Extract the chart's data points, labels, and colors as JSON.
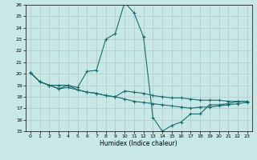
{
  "xlabel": "Humidex (Indice chaleur)",
  "ylabel": "",
  "background_color": "#c8e8e8",
  "grid_color": "#b0c8c8",
  "line_color": "#1a6b6b",
  "xlim": [
    -0.5,
    23.5
  ],
  "ylim": [
    15,
    26
  ],
  "xticks": [
    0,
    1,
    2,
    3,
    4,
    5,
    6,
    7,
    8,
    9,
    10,
    11,
    12,
    13,
    14,
    15,
    16,
    17,
    18,
    19,
    20,
    21,
    22,
    23
  ],
  "yticks": [
    15,
    16,
    17,
    18,
    19,
    20,
    21,
    22,
    23,
    24,
    25,
    26
  ],
  "line1_x": [
    0,
    1,
    2,
    3,
    4,
    5,
    6,
    7,
    8,
    9,
    10,
    11,
    12,
    13,
    14,
    15,
    16,
    17,
    18,
    19,
    20,
    21,
    22,
    23
  ],
  "line1_y": [
    20.1,
    19.3,
    19.0,
    18.7,
    18.8,
    18.6,
    18.4,
    18.3,
    18.1,
    18.0,
    17.8,
    17.6,
    17.5,
    17.4,
    17.3,
    17.2,
    17.1,
    17.0,
    17.1,
    17.1,
    17.2,
    17.3,
    17.4,
    17.5
  ],
  "line2_x": [
    0,
    1,
    2,
    3,
    4,
    5,
    6,
    7,
    8,
    9,
    10,
    11,
    12,
    13,
    14,
    15,
    16,
    17,
    18,
    19,
    20,
    21,
    22,
    23
  ],
  "line2_y": [
    20.1,
    19.3,
    19.0,
    19.0,
    19.0,
    18.8,
    20.2,
    20.3,
    23.0,
    23.5,
    26.2,
    25.3,
    23.2,
    16.2,
    15.0,
    15.5,
    15.8,
    16.5,
    16.5,
    17.3,
    17.3,
    17.4,
    17.6,
    17.6
  ],
  "line3_x": [
    0,
    1,
    2,
    3,
    4,
    5,
    6,
    7,
    8,
    9,
    10,
    11,
    12,
    13,
    14,
    15,
    16,
    17,
    18,
    19,
    20,
    21,
    22,
    23
  ],
  "line3_y": [
    20.1,
    19.3,
    19.0,
    18.7,
    19.0,
    18.6,
    18.4,
    18.3,
    18.1,
    18.0,
    18.5,
    18.4,
    18.3,
    18.1,
    18.0,
    17.9,
    17.9,
    17.8,
    17.7,
    17.7,
    17.7,
    17.6,
    17.6,
    17.6
  ],
  "xlabel_fontsize": 5.5,
  "tick_fontsize": 4.5
}
